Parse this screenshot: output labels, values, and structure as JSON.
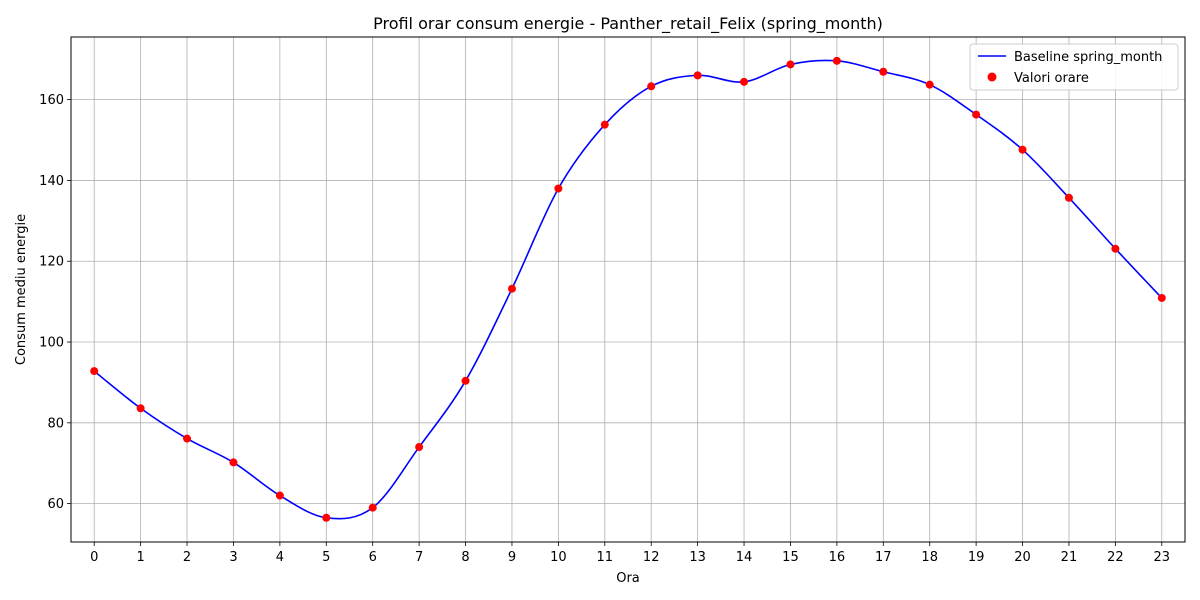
{
  "chart_data": {
    "type": "line",
    "title": "Profil orar consum energie - Panther_retail_Felix (spring_month)",
    "xlabel": "Ora",
    "ylabel": "Consum mediu energie",
    "xlim": [
      -0.5,
      23.5
    ],
    "ylim": [
      50.5,
      175.5
    ],
    "x": [
      0,
      1,
      2,
      3,
      4,
      5,
      6,
      7,
      8,
      9,
      10,
      11,
      12,
      13,
      14,
      15,
      16,
      17,
      18,
      19,
      20,
      21,
      22,
      23
    ],
    "x_ticks": [
      "0",
      "1",
      "2",
      "3",
      "4",
      "5",
      "6",
      "7",
      "8",
      "9",
      "10",
      "11",
      "12",
      "13",
      "14",
      "15",
      "16",
      "17",
      "18",
      "19",
      "20",
      "21",
      "22",
      "23"
    ],
    "y_ticks": [
      60,
      80,
      100,
      120,
      140,
      160
    ],
    "grid": true,
    "legend_position": "top-right",
    "series": [
      {
        "name": "Baseline spring_month",
        "kind": "line",
        "color": "#0000ff",
        "values": [
          92.8,
          83.6,
          76.1,
          70.2,
          62.0,
          56.5,
          59.0,
          74.0,
          90.4,
          113.2,
          138.0,
          153.8,
          163.3,
          166.0,
          164.4,
          168.7,
          169.6,
          166.9,
          163.7,
          156.3,
          147.6,
          135.7,
          123.1,
          110.9
        ]
      },
      {
        "name": "Valori orare",
        "kind": "scatter",
        "color": "#ff0000",
        "values": [
          92.8,
          83.6,
          76.1,
          70.2,
          62.0,
          56.5,
          59.0,
          74.0,
          90.4,
          113.2,
          138.0,
          153.8,
          163.3,
          166.0,
          164.4,
          168.7,
          169.6,
          166.9,
          163.7,
          156.3,
          147.6,
          135.7,
          123.1,
          110.9
        ]
      }
    ]
  }
}
